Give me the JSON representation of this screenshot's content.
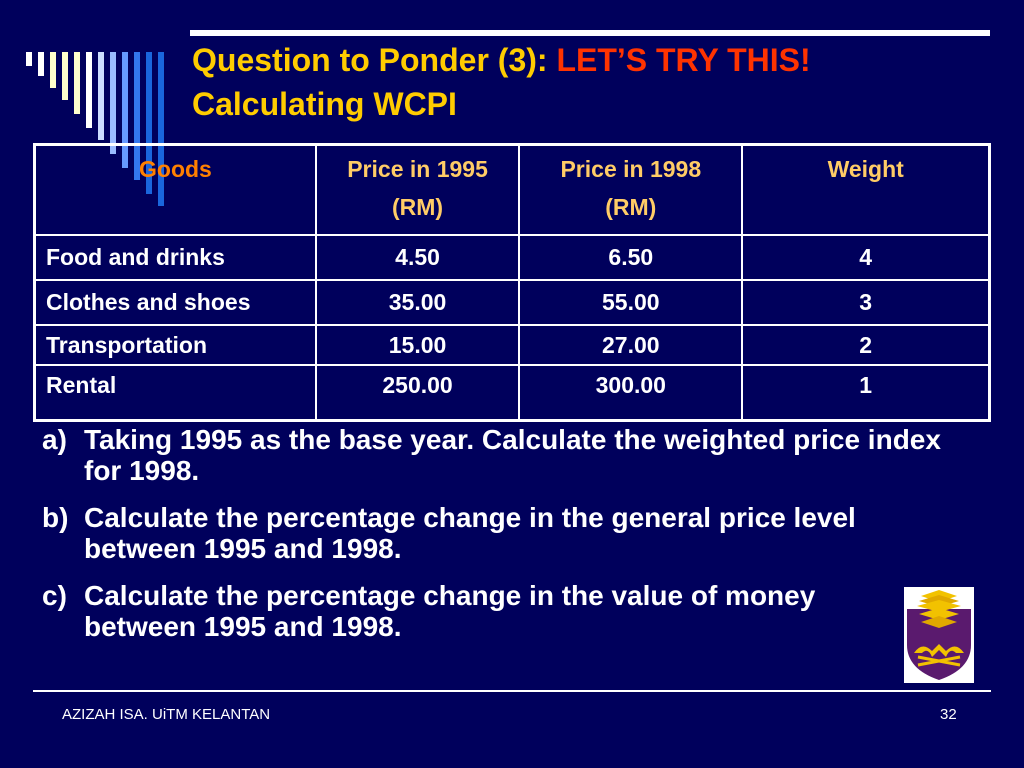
{
  "slide": {
    "title_part1": "Question to Ponder (3):",
    "title_highlight": "LET’S TRY THIS!",
    "title_line2": "Calculating WCPI",
    "colors": {
      "background": "#00005c",
      "title": "#ffcc00",
      "highlight": "#ff3300",
      "header_text": "#ffcc66",
      "goods_header": "#ff8000",
      "text": "#ffffff"
    }
  },
  "table": {
    "headers": [
      {
        "line1": "Goods",
        "line2": ""
      },
      {
        "line1": "Price in 1995",
        "line2": "(RM)"
      },
      {
        "line1": "Price in 1998",
        "line2": "(RM)"
      },
      {
        "line1": "Weight",
        "line2": ""
      }
    ],
    "rows": [
      {
        "goods": "Food and drinks",
        "price_1995": "4.50",
        "price_1998": "6.50",
        "weight": "4"
      },
      {
        "goods": "Clothes and shoes",
        "price_1995": "35.00",
        "price_1998": "55.00",
        "weight": "3"
      },
      {
        "goods": "Transportation",
        "price_1995": "15.00",
        "price_1998": "27.00",
        "weight": "2"
      },
      {
        "goods": "Rental",
        "price_1995": "250.00",
        "price_1998": "300.00",
        "weight": "1"
      }
    ]
  },
  "questions": [
    {
      "marker": "a)",
      "text": "Taking 1995 as the base year. Calculate the weighted price index for 1998."
    },
    {
      "marker": "b)",
      "text": "Calculate the percentage change in the general price level between 1995 and 1998."
    },
    {
      "marker": "c)",
      "text": "Calculate the percentage change in the value of money between 1995 and 1998."
    }
  ],
  "footer": {
    "author": "AZIZAH ISA. UiTM KELANTAN",
    "page_number": "32"
  },
  "logo": {
    "icon": "uitm-crest-logo"
  }
}
